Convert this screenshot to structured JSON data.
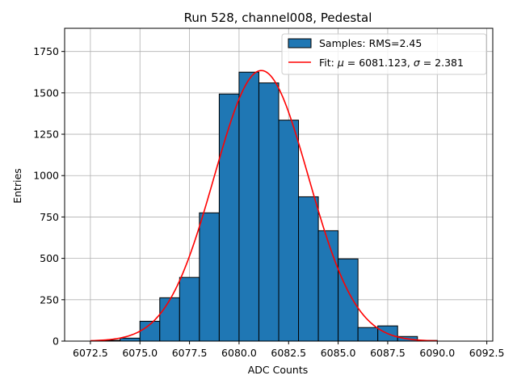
{
  "chart_data": {
    "type": "histogram",
    "title": "Run 528, channel008, Pedestal",
    "xlabel": "ADC Counts",
    "ylabel": "Entries",
    "xlim": [
      6071.2,
      6092.8
    ],
    "ylim": [
      0,
      1890
    ],
    "xticks": [
      6072.5,
      6075.0,
      6077.5,
      6080.0,
      6082.5,
      6085.0,
      6087.5,
      6090.0,
      6092.5
    ],
    "xtick_labels": [
      "6072.5",
      "6075.0",
      "6077.5",
      "6080.0",
      "6082.5",
      "6085.0",
      "6087.5",
      "6090.0",
      "6092.5"
    ],
    "yticks": [
      0,
      250,
      500,
      750,
      1000,
      1250,
      1500,
      1750
    ],
    "ytick_labels": [
      "0",
      "250",
      "500",
      "750",
      "1000",
      "1250",
      "1500",
      "1750"
    ],
    "grid": true,
    "legend_position": "top-right",
    "series": [
      {
        "name": "Samples: RMS=2.45",
        "kind": "bars",
        "color": "#1f77b4",
        "edge_color": "#000000",
        "bins": [
          {
            "left": 6073.0,
            "right": 6074.0,
            "value": 5
          },
          {
            "left": 6074.0,
            "right": 6075.0,
            "value": 18
          },
          {
            "left": 6075.0,
            "right": 6076.0,
            "value": 120
          },
          {
            "left": 6076.0,
            "right": 6077.0,
            "value": 262
          },
          {
            "left": 6077.0,
            "right": 6078.0,
            "value": 385
          },
          {
            "left": 6078.0,
            "right": 6079.0,
            "value": 775
          },
          {
            "left": 6079.0,
            "right": 6080.0,
            "value": 1493
          },
          {
            "left": 6080.0,
            "right": 6081.0,
            "value": 1625
          },
          {
            "left": 6081.0,
            "right": 6082.0,
            "value": 1560
          },
          {
            "left": 6082.0,
            "right": 6083.0,
            "value": 1335
          },
          {
            "left": 6083.0,
            "right": 6084.0,
            "value": 872
          },
          {
            "left": 6084.0,
            "right": 6085.0,
            "value": 667
          },
          {
            "left": 6085.0,
            "right": 6086.0,
            "value": 497
          },
          {
            "left": 6086.0,
            "right": 6087.0,
            "value": 82
          },
          {
            "left": 6087.0,
            "right": 6088.0,
            "value": 92
          },
          {
            "left": 6088.0,
            "right": 6089.0,
            "value": 28
          },
          {
            "left": 6089.0,
            "right": 6090.0,
            "value": 4
          }
        ]
      },
      {
        "name": "Fit: μ = 6081.123, σ = 2.381",
        "kind": "gaussian-line",
        "color": "#ff0000",
        "mu": 6081.123,
        "sigma": 2.381,
        "amplitude": 1635,
        "x_range": [
          6072.5,
          6090.0
        ]
      }
    ],
    "legend": {
      "samples_label": "Samples: RMS=2.45",
      "fit_prefix": "Fit: ",
      "mu_symbol": "μ",
      "mu_text": " = 6081.123, ",
      "sigma_symbol": "σ",
      "sigma_text": " = 2.381"
    }
  }
}
